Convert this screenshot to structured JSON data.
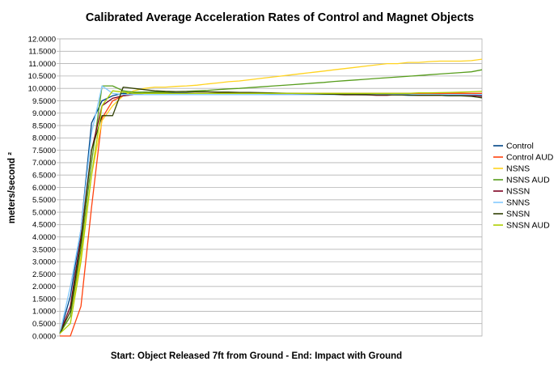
{
  "chart_data": {
    "type": "line",
    "title": "Calibrated Average Acceleration Rates of Control and Magnet Objects",
    "xlabel": "Start: Object Released 7ft from Ground - End: Impact with Ground",
    "ylabel": "meters/second ²",
    "ylim": [
      0,
      12
    ],
    "ytick_step": 0.5,
    "ytick_labels": [
      "0.0000",
      "0.5000",
      "1.0000",
      "1.5000",
      "2.0000",
      "2.5000",
      "3.0000",
      "3.5000",
      "4.0000",
      "4.5000",
      "5.0000",
      "5.5000",
      "6.0000",
      "6.5000",
      "7.0000",
      "7.5000",
      "8.0000",
      "8.5000",
      "9.0000",
      "9.5000",
      "10.0000",
      "10.5000",
      "11.0000",
      "11.5000",
      "12.0000"
    ],
    "x": [
      0,
      1,
      2,
      3,
      4,
      5,
      6,
      7,
      8,
      9,
      10,
      11,
      12,
      13,
      14,
      15,
      16,
      17,
      18,
      19,
      20,
      21,
      22,
      23,
      24,
      25,
      26,
      27,
      28,
      29,
      30,
      31,
      32,
      33,
      34,
      35,
      36,
      37,
      38,
      39,
      40
    ],
    "grid": "horizontal",
    "legend_position": "right",
    "series": [
      {
        "name": "Control",
        "color": "#004586",
        "values": [
          0.1,
          1.6,
          4.3,
          8.6,
          9.5,
          9.7,
          9.8,
          9.8,
          9.85,
          9.85,
          9.85,
          9.82,
          9.82,
          9.8,
          9.8,
          9.8,
          9.8,
          9.8,
          9.8,
          9.8,
          9.78,
          9.78,
          9.76,
          9.76,
          9.76,
          9.75,
          9.75,
          9.75,
          9.75,
          9.74,
          9.74,
          9.74,
          9.74,
          9.72,
          9.72,
          9.72,
          9.72,
          9.7,
          9.7,
          9.7,
          9.7
        ]
      },
      {
        "name": "Control AUD",
        "color": "#ff420e",
        "values": [
          -0.4,
          0.0,
          1.2,
          5.2,
          8.8,
          9.5,
          9.7,
          9.75,
          9.8,
          9.8,
          9.8,
          9.8,
          9.8,
          9.8,
          9.8,
          9.8,
          9.8,
          9.8,
          9.8,
          9.8,
          9.8,
          9.8,
          9.8,
          9.8,
          9.8,
          9.8,
          9.8,
          9.8,
          9.8,
          9.8,
          9.8,
          9.8,
          9.8,
          9.8,
          9.8,
          9.8,
          9.8,
          9.8,
          9.8,
          9.8,
          9.8
        ]
      },
      {
        "name": "NSNS",
        "color": "#ffd320",
        "values": [
          0.1,
          0.8,
          3.2,
          6.5,
          8.7,
          9.3,
          9.7,
          9.9,
          10.0,
          10.05,
          10.05,
          10.08,
          10.1,
          10.13,
          10.18,
          10.22,
          10.27,
          10.3,
          10.35,
          10.4,
          10.45,
          10.5,
          10.55,
          10.6,
          10.65,
          10.7,
          10.75,
          10.8,
          10.85,
          10.9,
          10.95,
          11.0,
          11.0,
          11.05,
          11.05,
          11.08,
          11.1,
          11.1,
          11.1,
          11.12,
          11.18
        ]
      },
      {
        "name": "NSNS AUD",
        "color": "#579d1c",
        "values": [
          0.1,
          0.8,
          3.5,
          7.0,
          10.1,
          10.1,
          9.9,
          9.85,
          9.85,
          9.85,
          9.85,
          9.87,
          9.88,
          9.9,
          9.92,
          9.95,
          9.98,
          10.0,
          10.03,
          10.06,
          10.09,
          10.12,
          10.15,
          10.18,
          10.21,
          10.24,
          10.28,
          10.31,
          10.34,
          10.37,
          10.4,
          10.43,
          10.46,
          10.49,
          10.52,
          10.55,
          10.58,
          10.61,
          10.64,
          10.67,
          10.75
        ]
      },
      {
        "name": "NSSN",
        "color": "#7e0021",
        "values": [
          0.1,
          1.2,
          4.0,
          7.5,
          9.3,
          9.6,
          9.7,
          9.75,
          9.8,
          9.8,
          9.8,
          9.8,
          9.8,
          9.8,
          9.8,
          9.8,
          9.8,
          9.8,
          9.8,
          9.8,
          9.8,
          9.78,
          9.76,
          9.75,
          9.75,
          9.75,
          9.75,
          9.74,
          9.74,
          9.74,
          9.72,
          9.72,
          9.75,
          9.75,
          9.72,
          9.72,
          9.72,
          9.72,
          9.72,
          9.72,
          9.68
        ]
      },
      {
        "name": "SNNS",
        "color": "#83caff",
        "values": [
          0.1,
          2.0,
          4.3,
          8.2,
          10.1,
          9.8,
          9.75,
          9.75,
          9.75,
          9.75,
          9.75,
          9.75,
          9.75,
          9.75,
          9.75,
          9.75,
          9.75,
          9.75,
          9.75,
          9.75,
          9.75,
          9.75,
          9.75,
          9.75,
          9.75,
          9.75,
          9.75,
          9.75,
          9.75,
          9.75,
          9.75,
          9.75,
          9.75,
          9.75,
          9.75,
          9.75,
          9.75,
          9.75,
          9.75,
          9.75,
          9.75
        ]
      },
      {
        "name": "SNSN",
        "color": "#314004",
        "values": [
          0.1,
          1.0,
          3.8,
          7.5,
          8.9,
          8.9,
          10.05,
          10.0,
          9.95,
          9.9,
          9.88,
          9.87,
          9.87,
          9.86,
          9.86,
          9.85,
          9.85,
          9.84,
          9.84,
          9.83,
          9.82,
          9.81,
          9.8,
          9.79,
          9.78,
          9.77,
          9.76,
          9.75,
          9.75,
          9.75,
          9.74,
          9.74,
          9.73,
          9.73,
          9.72,
          9.72,
          9.72,
          9.7,
          9.7,
          9.68,
          9.62
        ]
      },
      {
        "name": "SNSN AUD",
        "color": "#aecf00",
        "values": [
          0.1,
          0.5,
          3.0,
          6.5,
          9.3,
          9.9,
          9.85,
          9.8,
          9.8,
          9.8,
          9.8,
          9.8,
          9.8,
          9.8,
          9.8,
          9.8,
          9.8,
          9.8,
          9.8,
          9.8,
          9.8,
          9.8,
          9.8,
          9.8,
          9.8,
          9.8,
          9.8,
          9.8,
          9.8,
          9.8,
          9.8,
          9.8,
          9.8,
          9.8,
          9.82,
          9.82,
          9.83,
          9.84,
          9.85,
          9.86,
          9.88
        ]
      }
    ]
  }
}
